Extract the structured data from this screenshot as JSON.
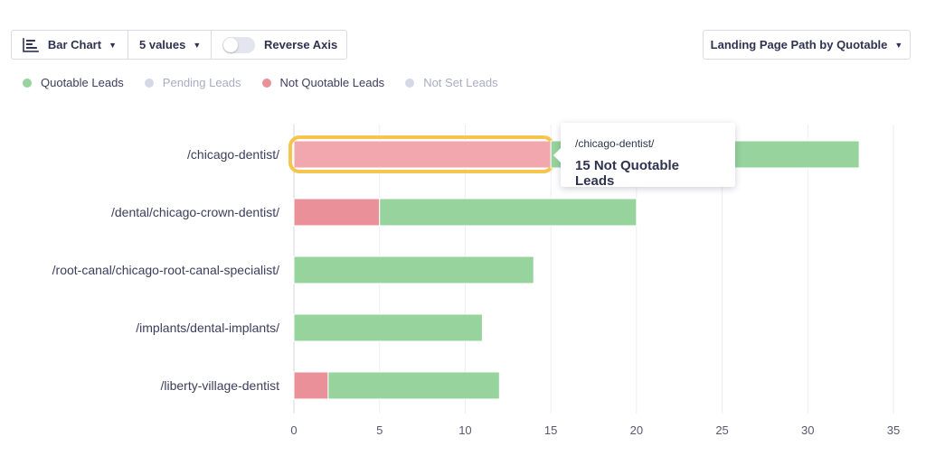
{
  "toolbar": {
    "chart_type_label": "Bar Chart",
    "values_label": "5 values",
    "reverse_axis_label": "Reverse Axis",
    "reverse_axis_on": false,
    "sort_label": "Landing Page Path by Quotable"
  },
  "legend": [
    {
      "label": "Quotable Leads",
      "color": "#96d39d",
      "active": true
    },
    {
      "label": "Pending Leads",
      "color": "#d5d9e6",
      "active": false
    },
    {
      "label": "Not Quotable Leads",
      "color": "#ea9098",
      "active": true
    },
    {
      "label": "Not Set Leads",
      "color": "#d5d9e6",
      "active": false
    }
  ],
  "chart_data": {
    "type": "bar",
    "orientation": "horizontal",
    "stacked": true,
    "categories": [
      "/chicago-dentist/",
      "/dental/chicago-crown-dentist/",
      "/root-canal/chicago-root-canal-specialist/",
      "/implants/dental-implants/",
      "/liberty-village-dentist"
    ],
    "series": [
      {
        "name": "Not Quotable Leads",
        "color": "#ea9098",
        "values": [
          15,
          5,
          0,
          0,
          2
        ]
      },
      {
        "name": "Quotable Leads",
        "color": "#96d39d",
        "values": [
          18,
          15,
          14,
          11,
          10
        ]
      }
    ],
    "xlim": [
      0,
      35
    ],
    "xticks": [
      0,
      5,
      10,
      15,
      20,
      25,
      30,
      35
    ],
    "grid": true,
    "highlight": {
      "category_index": 0,
      "series_index": 0
    }
  },
  "tooltip": {
    "path": "/chicago-dentist/",
    "value_text": "15 Not Quotable Leads"
  }
}
